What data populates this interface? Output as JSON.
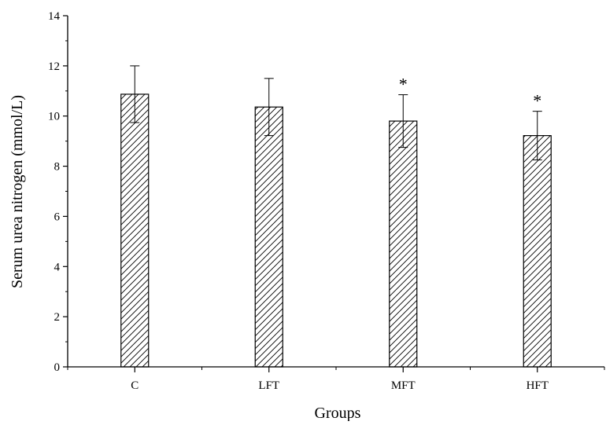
{
  "chart_data": {
    "type": "bar",
    "categories": [
      "C",
      "LFT",
      "MFT",
      "HFT"
    ],
    "values": [
      10.87,
      10.36,
      9.8,
      9.22
    ],
    "errors": [
      1.13,
      1.14,
      1.05,
      0.97
    ],
    "significance": [
      "",
      "",
      "*",
      "*"
    ],
    "xlabel": "Groups",
    "ylabel": "Serum urea nitrogen (mmol/L)",
    "ylim": [
      0,
      14
    ],
    "yticks": [
      "0",
      "2",
      "4",
      "6",
      "8",
      "10",
      "12",
      "14"
    ],
    "bar_fill": "hatched",
    "bar_color": "#000000",
    "grid": false,
    "legend": "none"
  }
}
